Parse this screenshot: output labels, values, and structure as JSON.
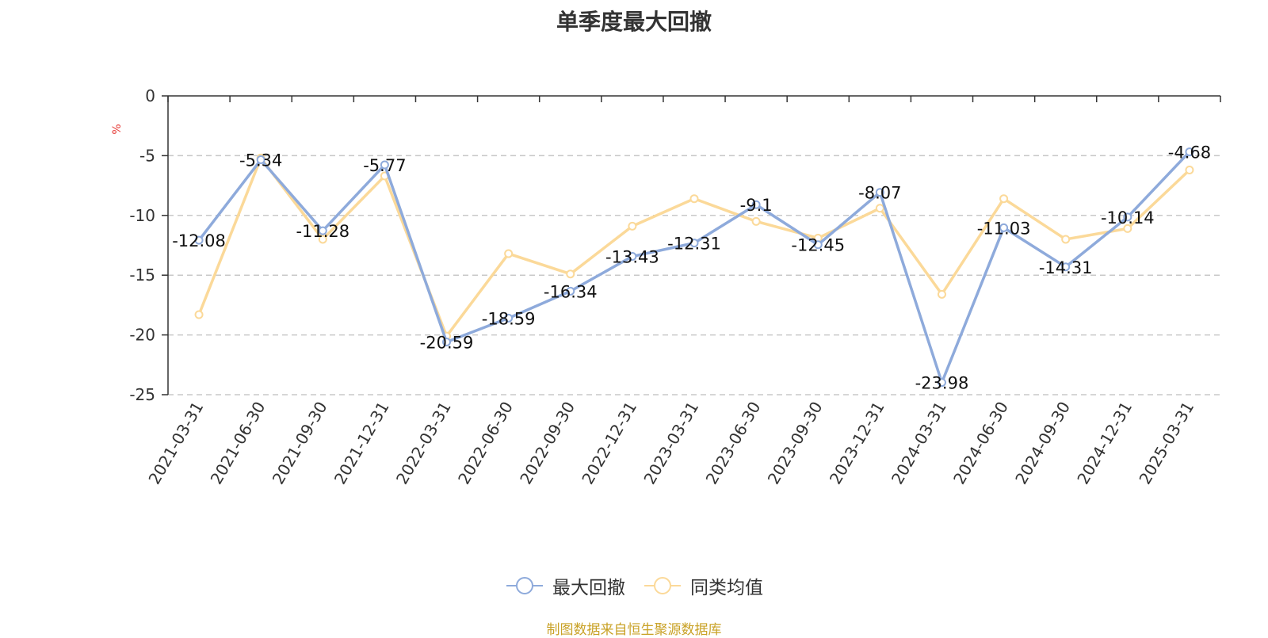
{
  "title": "单季度最大回撤",
  "source_note": "制图数据来自恒生聚源数据库",
  "colors": {
    "source_note": "#c9a227",
    "unit_label": "#e53935",
    "grid": "#c8c8c8",
    "axis": "#333333"
  },
  "chart_data": {
    "type": "line",
    "title": "单季度最大回撤",
    "ylabel": "%",
    "ylim": [
      -25,
      0
    ],
    "yticks": [
      0,
      -5,
      -10,
      -15,
      -20,
      -25
    ],
    "grid": "horizontal dashed",
    "legend_position": "bottom-center",
    "categories": [
      "2021-03-31",
      "2021-06-30",
      "2021-09-30",
      "2021-12-31",
      "2022-03-31",
      "2022-06-30",
      "2022-09-30",
      "2022-12-31",
      "2023-03-31",
      "2023-06-30",
      "2023-09-30",
      "2023-12-31",
      "2024-03-31",
      "2024-06-30",
      "2024-09-30",
      "2024-12-31",
      "2025-03-31"
    ],
    "series": [
      {
        "name": "最大回撤",
        "color": "#8eaadb",
        "labeled": true,
        "values": [
          -12.08,
          -5.34,
          -11.28,
          -5.77,
          -20.59,
          -18.59,
          -16.34,
          -13.43,
          -12.31,
          -9.1,
          -12.45,
          -8.07,
          -23.98,
          -11.03,
          -14.31,
          -10.14,
          -4.68
        ]
      },
      {
        "name": "同类均值",
        "color": "#fbd999",
        "labeled": false,
        "values": [
          -18.3,
          -5.2,
          -12.0,
          -6.7,
          -20.1,
          -13.2,
          -14.9,
          -10.9,
          -8.6,
          -10.5,
          -11.9,
          -9.4,
          -16.6,
          -8.6,
          -12.0,
          -11.1,
          -6.2
        ]
      }
    ]
  }
}
